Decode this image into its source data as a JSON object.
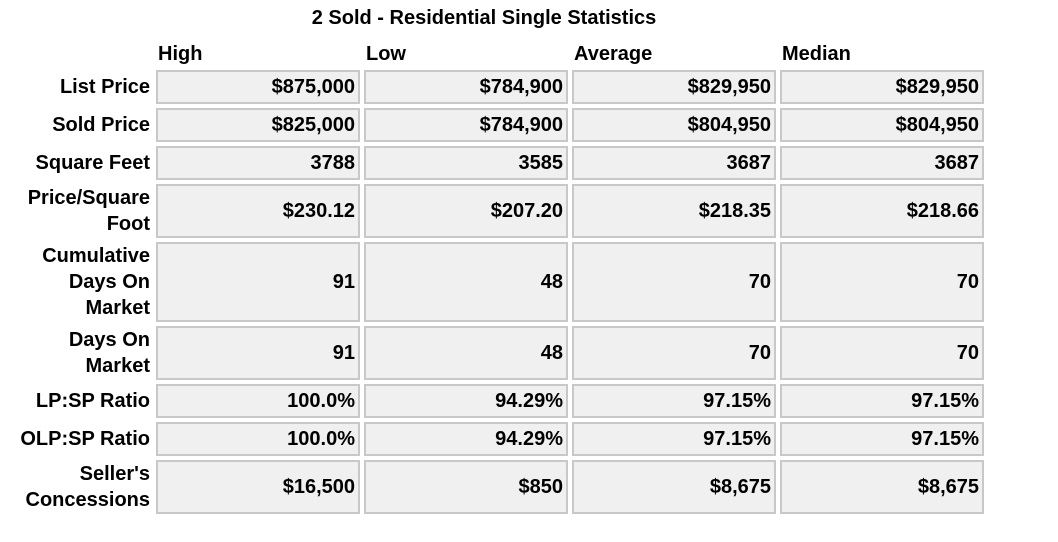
{
  "title": "2 Sold - Residential Single Statistics",
  "columns": [
    "High",
    "Low",
    "Average",
    "Median"
  ],
  "rows": [
    {
      "label": "List Price",
      "values": [
        "$875,000",
        "$784,900",
        "$829,950",
        "$829,950"
      ]
    },
    {
      "label": "Sold Price",
      "values": [
        "$825,000",
        "$784,900",
        "$804,950",
        "$804,950"
      ]
    },
    {
      "label": "Square Feet",
      "values": [
        "3788",
        "3585",
        "3687",
        "3687"
      ]
    },
    {
      "label": "Price/Square Foot",
      "values": [
        "$230.12",
        "$207.20",
        "$218.35",
        "$218.66"
      ]
    },
    {
      "label": "Cumulative Days On Market",
      "values": [
        "91",
        "48",
        "70",
        "70"
      ]
    },
    {
      "label": "Days On Market",
      "values": [
        "91",
        "48",
        "70",
        "70"
      ]
    },
    {
      "label": "LP:SP Ratio",
      "values": [
        "100.0%",
        "94.29%",
        "97.15%",
        "97.15%"
      ]
    },
    {
      "label": "OLP:SP Ratio",
      "values": [
        "100.0%",
        "94.29%",
        "97.15%",
        "97.15%"
      ]
    },
    {
      "label": "Seller's Concessions",
      "values": [
        "$16,500",
        "$850",
        "$8,675",
        "$8,675"
      ]
    }
  ]
}
